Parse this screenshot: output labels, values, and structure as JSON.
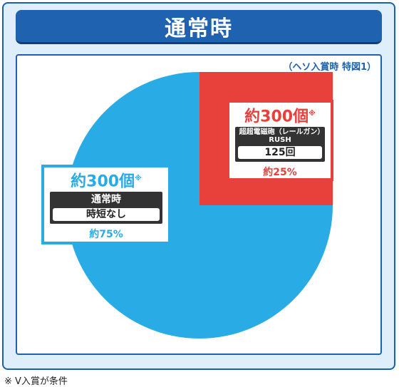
{
  "header": {
    "title": "通常時"
  },
  "subnote": "（ヘソ入賞時 特図1）",
  "colors": {
    "red": "#e8413c",
    "blue": "#29ace5",
    "navy": "#1f62b0"
  },
  "chart_data": {
    "type": "pie",
    "slices": [
      {
        "label": "超超電磁砲（レールガン）RUSH",
        "sub": "125回",
        "count": "約300個",
        "percent": "約25%",
        "value": 25,
        "color": "#e8413c"
      },
      {
        "label": "通常時",
        "sub": "時短なし",
        "count": "約300個",
        "percent": "約75%",
        "value": 75,
        "color": "#29ace5"
      }
    ],
    "note_mark": "※"
  },
  "footnote": "※ V入賞が条件"
}
